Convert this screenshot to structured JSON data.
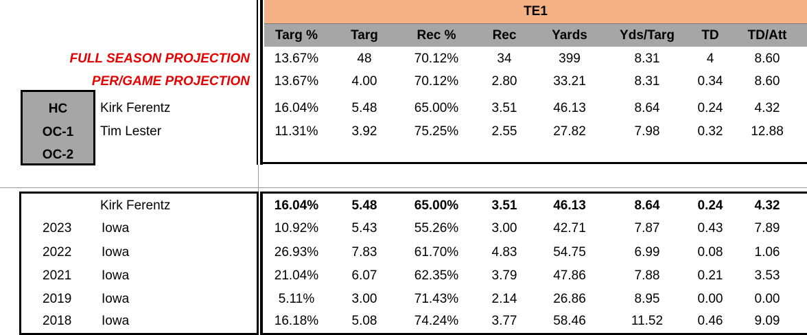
{
  "group_title": "TE1",
  "columns": [
    "Targ %",
    "Targ",
    "Rec %",
    "Rec",
    "Yards",
    "Yds/Targ",
    "TD",
    "TD/Att"
  ],
  "projections": [
    {
      "label": "FULL SEASON PROJECTION",
      "values": [
        "13.67%",
        "48",
        "70.12%",
        "34",
        "399",
        "8.31",
        "4",
        "8.60"
      ]
    },
    {
      "label": "PER/GAME PROJECTION",
      "values": [
        "13.67%",
        "4.00",
        "70.12%",
        "2.80",
        "33.21",
        "8.31",
        "0.34",
        "8.60"
      ]
    }
  ],
  "staff": [
    {
      "role": "HC",
      "name": "Kirk Ferentz",
      "values": [
        "16.04%",
        "5.48",
        "65.00%",
        "3.51",
        "46.13",
        "8.64",
        "0.24",
        "4.32"
      ]
    },
    {
      "role": "OC-1",
      "name": "Tim Lester",
      "values": [
        "11.31%",
        "3.92",
        "75.25%",
        "2.55",
        "27.82",
        "7.98",
        "0.32",
        "12.88"
      ]
    },
    {
      "role": "OC-2",
      "name": "",
      "values": []
    }
  ],
  "history": {
    "coach": "Kirk Ferentz",
    "summary": [
      "16.04%",
      "5.48",
      "65.00%",
      "3.51",
      "46.13",
      "8.64",
      "0.24",
      "4.32"
    ],
    "rows": [
      {
        "year": "2023",
        "team": "Iowa",
        "values": [
          "10.92%",
          "5.43",
          "55.26%",
          "3.00",
          "42.71",
          "7.87",
          "0.43",
          "7.89"
        ]
      },
      {
        "year": "2022",
        "team": "Iowa",
        "values": [
          "26.93%",
          "7.83",
          "61.70%",
          "4.83",
          "54.75",
          "6.99",
          "0.08",
          "1.06"
        ]
      },
      {
        "year": "2021",
        "team": "Iowa",
        "values": [
          "21.04%",
          "6.07",
          "62.35%",
          "3.79",
          "47.86",
          "7.88",
          "0.21",
          "3.53"
        ]
      },
      {
        "year": "2019",
        "team": "Iowa",
        "values": [
          "5.11%",
          "3.00",
          "71.43%",
          "2.14",
          "26.86",
          "8.95",
          "0.00",
          "0.00"
        ]
      },
      {
        "year": "2018",
        "team": "Iowa",
        "values": [
          "16.18%",
          "5.08",
          "74.24%",
          "3.77",
          "58.46",
          "11.52",
          "0.46",
          "9.09"
        ]
      }
    ]
  },
  "colors": {
    "header_orange": "#f4b183",
    "header_gray": "#a6a6a6",
    "projection_red": "#e60000"
  }
}
